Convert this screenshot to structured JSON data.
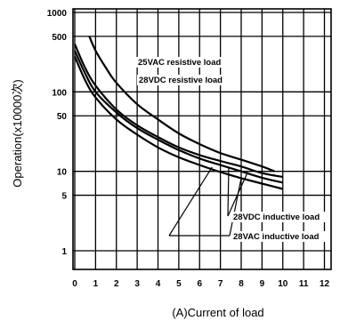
{
  "chart_data": {
    "type": "line",
    "title": "",
    "xlabel": "(A)Current of load",
    "ylabel": "Operation(x10000次)",
    "x_ticks": [
      0,
      1,
      2,
      3,
      4,
      5,
      6,
      7,
      8,
      9,
      10,
      11,
      12
    ],
    "x_tick_labels": [
      "0",
      "1",
      "2",
      "3",
      "4",
      "5",
      "6",
      "7",
      "8",
      "9",
      "10",
      "11",
      "12"
    ],
    "y_scale": "log",
    "y_ticks": [
      1,
      5,
      10,
      50,
      100,
      500,
      1000
    ],
    "y_tick_labels": [
      "1",
      "5",
      "10",
      "50",
      "100",
      "500",
      "1000"
    ],
    "xlim": [
      0,
      12.5
    ],
    "ylim": [
      0.5,
      1000
    ],
    "grid": true,
    "series": [
      {
        "name": "25VAC resistive load",
        "points": [
          [
            0.7,
            500
          ],
          [
            1,
            330
          ],
          [
            1.5,
            200
          ],
          [
            2,
            130
          ],
          [
            3,
            70
          ],
          [
            4,
            45
          ],
          [
            5,
            30
          ],
          [
            6,
            22
          ],
          [
            7,
            17
          ],
          [
            8,
            14
          ],
          [
            9,
            11.5
          ],
          [
            9.6,
            10
          ]
        ]
      },
      {
        "name": "28VDC resistive load",
        "points": [
          [
            0,
            400
          ],
          [
            0.5,
            200
          ],
          [
            1,
            120
          ],
          [
            2,
            60
          ],
          [
            3,
            38
          ],
          [
            4,
            27
          ],
          [
            5,
            20
          ],
          [
            6,
            16
          ],
          [
            7,
            13.5
          ],
          [
            8,
            11.5
          ],
          [
            9,
            9.5
          ],
          [
            10,
            8.5
          ]
        ]
      },
      {
        "name": "28VDC inductive load",
        "points": [
          [
            0,
            330
          ],
          [
            0.5,
            170
          ],
          [
            1,
            100
          ],
          [
            2,
            55
          ],
          [
            3,
            35
          ],
          [
            4,
            25
          ],
          [
            5,
            18.5
          ],
          [
            6,
            14.5
          ],
          [
            7,
            12
          ],
          [
            8,
            10
          ],
          [
            9,
            8.3
          ],
          [
            10,
            7.2
          ]
        ]
      },
      {
        "name": "28VAC inductive load",
        "points": [
          [
            0,
            280
          ],
          [
            0.5,
            140
          ],
          [
            1,
            85
          ],
          [
            2,
            45
          ],
          [
            3,
            29
          ],
          [
            4,
            20
          ],
          [
            5,
            15
          ],
          [
            6,
            12
          ],
          [
            7,
            9.8
          ],
          [
            8,
            8.2
          ],
          [
            9,
            7
          ],
          [
            10,
            6
          ]
        ]
      }
    ],
    "annotations": [
      {
        "text": "25VAC resistive load",
        "series": 0
      },
      {
        "text": "28VDC resistive load",
        "series": 1
      },
      {
        "text": "28VDC inductive load",
        "series": 2
      },
      {
        "text": "28VAC inductive load",
        "series": 3
      }
    ]
  }
}
